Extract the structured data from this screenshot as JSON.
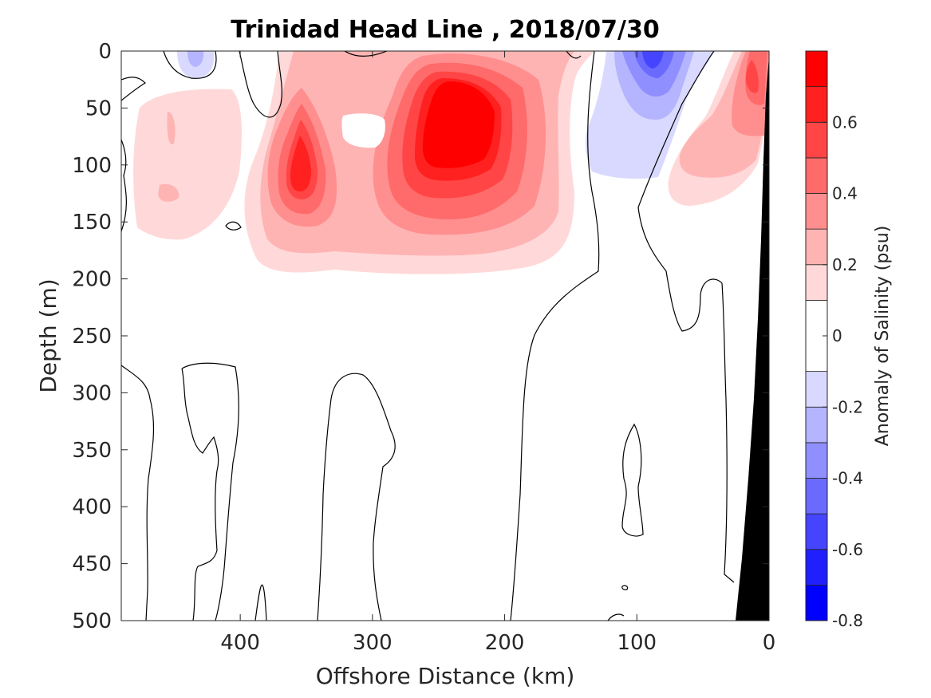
{
  "chart_data": {
    "type": "heatmap",
    "subtype": "filled-contour",
    "title": "Trinidad Head Line , 2018/07/30",
    "xlabel": "Offshore Distance (km)",
    "ylabel": "Depth (m)",
    "xlim": [
      490,
      0
    ],
    "ylim": [
      0,
      500
    ],
    "x_reversed": true,
    "y_reversed": true,
    "xticks": [
      400,
      300,
      200,
      100,
      0
    ],
    "yticks": [
      0,
      50,
      100,
      150,
      200,
      250,
      300,
      350,
      400,
      450,
      500
    ],
    "colorbar": {
      "label": "Anomaly of Salinity (psu)",
      "range": [
        -0.8,
        0.8
      ],
      "ticks": [
        -0.8,
        -0.6,
        -0.4,
        -0.2,
        0,
        0.2,
        0.4,
        0.6
      ],
      "tick_labels": [
        "-0.8",
        "-0.6",
        "-0.4",
        "-0.2",
        "0",
        "0.2",
        "0.4",
        "0.6"
      ],
      "levels": [
        -0.8,
        -0.7,
        -0.6,
        -0.5,
        -0.4,
        -0.3,
        -0.2,
        -0.1,
        0.1,
        0.2,
        0.3,
        0.4,
        0.5,
        0.6,
        0.7,
        0.8
      ],
      "colors": [
        "#0000ff",
        "#2020ff",
        "#4545ff",
        "#6a6aff",
        "#8f8fff",
        "#b4b4ff",
        "#d9d9ff",
        "#ffffff",
        "#ffd9d9",
        "#ffb4b4",
        "#ff8f8f",
        "#ff6a6a",
        "#ff4545",
        "#ff2020",
        "#ff0000"
      ]
    },
    "features": [
      {
        "name": "positive anomaly core",
        "x_km": 235,
        "depth_m": 75,
        "value": 0.75
      },
      {
        "name": "positive anomaly core",
        "x_km": 355,
        "depth_m": 100,
        "value": 0.65
      },
      {
        "name": "negative anomaly core",
        "x_km": 90,
        "depth_m": 10,
        "value": -0.55
      },
      {
        "name": "negative anomaly",
        "x_km": 435,
        "depth_m": 8,
        "value": -0.2
      },
      {
        "name": "coastal positive anomaly",
        "x_km": 20,
        "depth_m": 40,
        "value": 0.55
      }
    ],
    "bathymetry_fill": "#000000",
    "grid": false
  }
}
